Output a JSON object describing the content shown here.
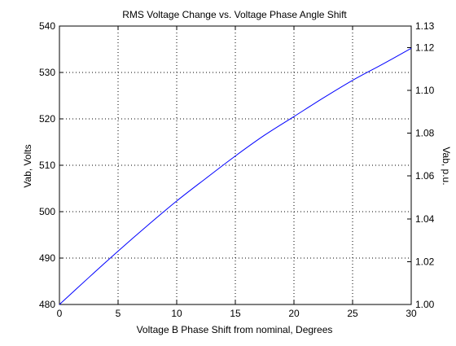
{
  "chart_data": {
    "type": "line",
    "title": "RMS Voltage Change vs. Voltage Phase Angle Shift",
    "xlabel": "Voltage B Phase Shift from nominal, Degrees",
    "ylabel": "Vab, Volts",
    "ylabel_right": "Vab, p.u.",
    "xlim": [
      0,
      30
    ],
    "ylim": [
      480,
      540
    ],
    "ylim_right": [
      1.0,
      1.13
    ],
    "grid": true,
    "x_ticks": [
      "0",
      "5",
      "10",
      "15",
      "20",
      "25",
      "30"
    ],
    "y_ticks": [
      "480",
      "490",
      "500",
      "510",
      "520",
      "530",
      "540"
    ],
    "y_ticks_right": [
      "1.00",
      "1.02",
      "1.04",
      "1.06",
      "1.08",
      "1.10",
      "1.12",
      "1.13"
    ],
    "series": [
      {
        "color": "#0000ff",
        "x": [
          0,
          2.5,
          5,
          7.5,
          10,
          12.5,
          15,
          17.5,
          20,
          22.5,
          25,
          27.5,
          30
        ],
        "y": [
          480.0,
          485.8,
          491.5,
          497.0,
          502.3,
          507.2,
          512.0,
          516.5,
          520.5,
          524.5,
          528.3,
          531.7,
          535.2
        ]
      }
    ]
  }
}
